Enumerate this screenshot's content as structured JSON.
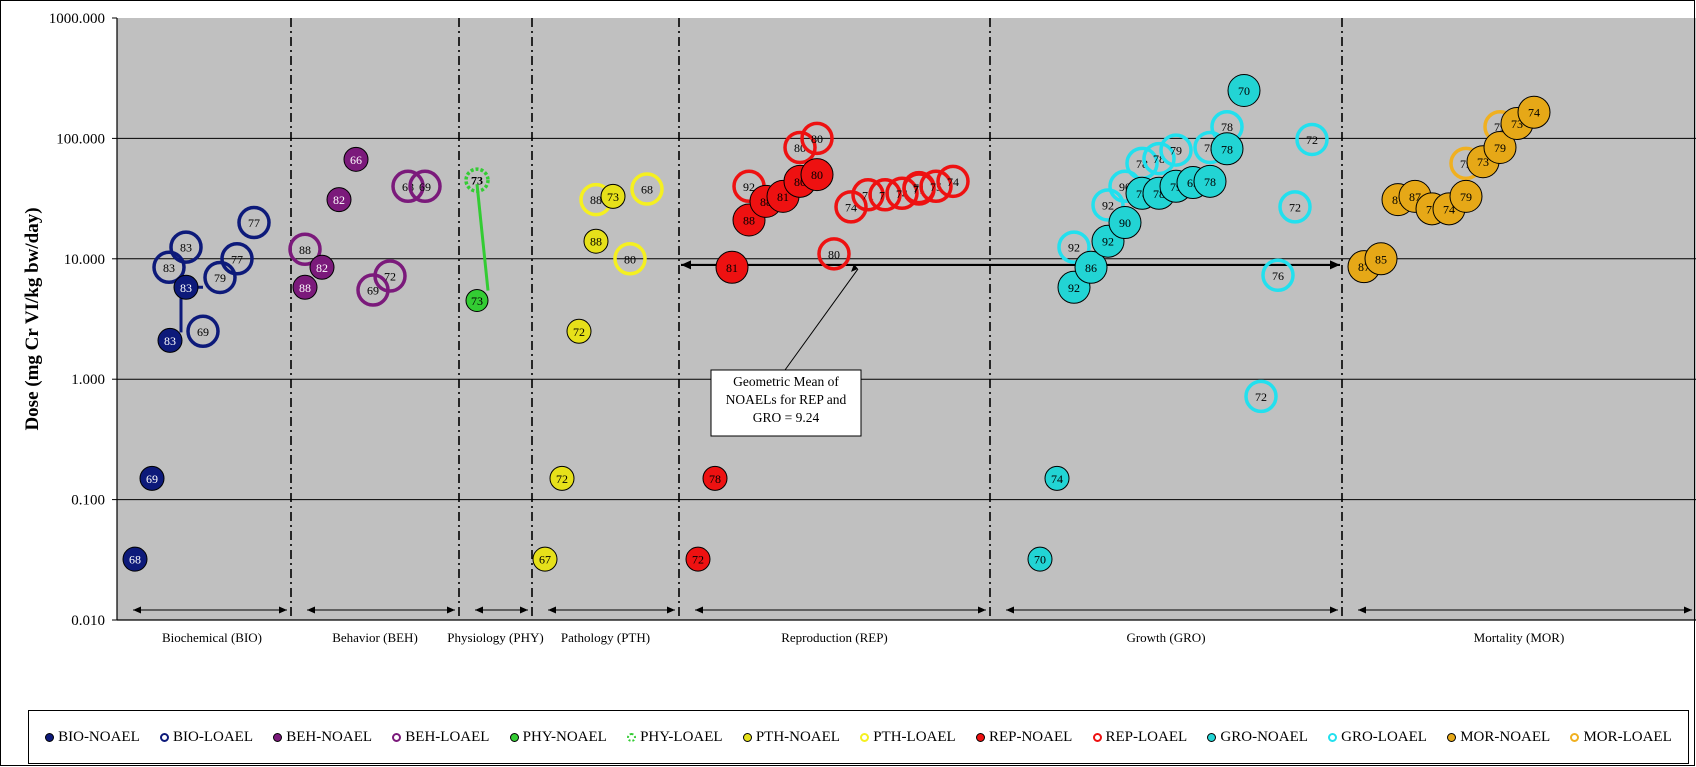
{
  "chart_data": {
    "type": "scatter",
    "yscale": "log",
    "ylim": [
      0.01,
      1000
    ],
    "ylabel": "Dose (mg Cr VI/kg bw/day)",
    "yticks": [
      "1000.000",
      "100.000",
      "10.000",
      "1.000",
      "0.100",
      "0.010"
    ],
    "grid": true,
    "legend_placement": "bottom",
    "categories": [
      {
        "code": "BIO",
        "label": "Biochemical (BIO)"
      },
      {
        "code": "BEH",
        "label": "Behavior (BEH)"
      },
      {
        "code": "PHY",
        "label": "Physiology (PHY)"
      },
      {
        "code": "PTH",
        "label": "Pathology (PTH)"
      },
      {
        "code": "REP",
        "label": "Reproduction (REP)"
      },
      {
        "code": "GRO",
        "label": "Growth (GRO)"
      },
      {
        "code": "MOR",
        "label": "Mortality (MOR)"
      }
    ],
    "series": [
      {
        "name": "BIO-NOAEL",
        "category": "BIO",
        "kind": "NOAEL",
        "color": "#0d1a7a",
        "text_color": "#ffffff",
        "points": [
          {
            "dose": 0.032,
            "label": "68"
          },
          {
            "dose": 0.15,
            "label": "69"
          },
          {
            "dose": 2.1,
            "label": "83"
          },
          {
            "dose": 5.8,
            "label": "83"
          }
        ]
      },
      {
        "name": "BIO-LOAEL",
        "category": "BIO",
        "kind": "LOAEL",
        "color": "#0d1a7a",
        "text_color": "#000000",
        "points": [
          {
            "dose": 8.5,
            "label": "83"
          },
          {
            "dose": 12.5,
            "label": "83"
          },
          {
            "dose": 2.5,
            "label": "69"
          },
          {
            "dose": 7.0,
            "label": "79"
          },
          {
            "dose": 10.0,
            "label": "77"
          },
          {
            "dose": 20.0,
            "label": "77"
          }
        ]
      },
      {
        "name": "BEH-NOAEL",
        "category": "BEH",
        "kind": "NOAEL",
        "color": "#7b1a7b",
        "text_color": "#ffffff",
        "points": [
          {
            "dose": 5.8,
            "label": "88"
          },
          {
            "dose": 8.5,
            "label": "82"
          },
          {
            "dose": 31,
            "label": "82"
          },
          {
            "dose": 67,
            "label": "66"
          }
        ]
      },
      {
        "name": "BEH-LOAEL",
        "category": "BEH",
        "kind": "LOAEL",
        "color": "#7b1a7b",
        "text_color": "#000000",
        "points": [
          {
            "dose": 12,
            "label": "88"
          },
          {
            "dose": 5.5,
            "label": "69"
          },
          {
            "dose": 7.2,
            "label": "72"
          },
          {
            "dose": 40,
            "label": "68"
          },
          {
            "dose": 40,
            "label": "69"
          }
        ]
      },
      {
        "name": "PHY-NOAEL",
        "category": "PHY",
        "kind": "NOAEL",
        "color": "#33cc33",
        "text_color": "#000000",
        "points": [
          {
            "dose": 4.5,
            "label": "73"
          }
        ]
      },
      {
        "name": "PHY-LOAEL",
        "category": "PHY",
        "kind": "LOAEL",
        "color": "#33cc33",
        "text_color": "#000000",
        "points": [
          {
            "dose": 45,
            "label": "73"
          }
        ]
      },
      {
        "name": "PTH-NOAEL",
        "category": "PTH",
        "kind": "NOAEL",
        "color": "#e6e01a",
        "text_color": "#000000",
        "points": [
          {
            "dose": 0.032,
            "label": "67"
          },
          {
            "dose": 0.15,
            "label": "72"
          },
          {
            "dose": 2.5,
            "label": "72"
          },
          {
            "dose": 14,
            "label": "88"
          },
          {
            "dose": 33,
            "label": "73"
          }
        ]
      },
      {
        "name": "PTH-LOAEL",
        "category": "PTH",
        "kind": "LOAEL",
        "color": "#f5f020",
        "text_color": "#000000",
        "points": [
          {
            "dose": 31,
            "label": "88"
          },
          {
            "dose": 10,
            "label": "80"
          },
          {
            "dose": 38,
            "label": "68"
          }
        ]
      },
      {
        "name": "REP-NOAEL",
        "category": "REP",
        "kind": "NOAEL",
        "color": "#ee1111",
        "text_color": "#000000",
        "points": [
          {
            "dose": 0.032,
            "label": "72"
          },
          {
            "dose": 0.15,
            "label": "78"
          },
          {
            "dose": 8.5,
            "label": "81"
          },
          {
            "dose": 21,
            "label": "88"
          },
          {
            "dose": 30,
            "label": "88"
          },
          {
            "dose": 33,
            "label": "81"
          },
          {
            "dose": 44,
            "label": "80"
          },
          {
            "dose": 50,
            "label": "80"
          }
        ]
      },
      {
        "name": "REP-LOAEL",
        "category": "REP",
        "kind": "LOAEL",
        "color": "#ee1111",
        "text_color": "#000000",
        "points": [
          {
            "dose": 40,
            "label": "92"
          },
          {
            "dose": 84,
            "label": "80"
          },
          {
            "dose": 100,
            "label": "80"
          },
          {
            "dose": 11,
            "label": "80"
          },
          {
            "dose": 27,
            "label": "74"
          },
          {
            "dose": 34,
            "label": "71"
          },
          {
            "dose": 34,
            "label": "71"
          },
          {
            "dose": 35,
            "label": "74"
          },
          {
            "dose": 38,
            "label": "71"
          },
          {
            "dose": 39,
            "label": "71"
          },
          {
            "dose": 40,
            "label": "75"
          },
          {
            "dose": 44,
            "label": "74"
          }
        ]
      },
      {
        "name": "GRO-NOAEL",
        "category": "GRO",
        "kind": "NOAEL",
        "color": "#22d4d4",
        "text_color": "#000000",
        "points": [
          {
            "dose": 0.032,
            "label": "70"
          },
          {
            "dose": 0.15,
            "label": "74"
          },
          {
            "dose": 5.8,
            "label": "92"
          },
          {
            "dose": 8.5,
            "label": "86"
          },
          {
            "dose": 14,
            "label": "92"
          },
          {
            "dose": 20,
            "label": "90"
          },
          {
            "dose": 35,
            "label": "78"
          },
          {
            "dose": 35,
            "label": "78"
          },
          {
            "dose": 40,
            "label": "79"
          },
          {
            "dose": 43,
            "label": "69"
          },
          {
            "dose": 44,
            "label": "78"
          },
          {
            "dose": 82,
            "label": "78"
          },
          {
            "dose": 250,
            "label": "70"
          }
        ]
      },
      {
        "name": "GRO-LOAEL",
        "category": "GRO",
        "kind": "LOAEL",
        "color": "#22e0ee",
        "text_color": "#000000",
        "points": [
          {
            "dose": 12.5,
            "label": "92"
          },
          {
            "dose": 28,
            "label": "92"
          },
          {
            "dose": 40,
            "label": "90"
          },
          {
            "dose": 62,
            "label": "78"
          },
          {
            "dose": 68,
            "label": "78"
          },
          {
            "dose": 80,
            "label": "79"
          },
          {
            "dose": 84,
            "label": "78"
          },
          {
            "dose": 125,
            "label": "78"
          },
          {
            "dose": 98,
            "label": "72"
          },
          {
            "dose": 0.72,
            "label": "72"
          },
          {
            "dose": 7.3,
            "label": "76"
          },
          {
            "dose": 27,
            "label": "72"
          }
        ]
      },
      {
        "name": "MOR-NOAEL",
        "category": "MOR",
        "kind": "NOAEL",
        "color": "#e6a817",
        "text_color": "#000000",
        "points": [
          {
            "dose": 8.6,
            "label": "87"
          },
          {
            "dose": 10,
            "label": "85"
          },
          {
            "dose": 31,
            "label": "87"
          },
          {
            "dose": 33,
            "label": "87"
          },
          {
            "dose": 26,
            "label": "77"
          },
          {
            "dose": 26,
            "label": "74"
          },
          {
            "dose": 33,
            "label": "79"
          },
          {
            "dose": 64,
            "label": "73"
          },
          {
            "dose": 84,
            "label": "79"
          },
          {
            "dose": 133,
            "label": "73"
          },
          {
            "dose": 165,
            "label": "74"
          }
        ]
      },
      {
        "name": "MOR-LOAEL",
        "category": "MOR",
        "kind": "LOAEL",
        "color": "#f0b020",
        "text_color": "#000000",
        "points": [
          {
            "dose": 62,
            "label": "79"
          },
          {
            "dose": 125,
            "label": "79"
          }
        ]
      }
    ],
    "geometric_mean": {
      "value": 9.24,
      "annotation_lines": [
        "Geometric Mean of",
        "NOAELs for REP and",
        "GRO = 9.24"
      ],
      "spans_categories": [
        "REP",
        "GRO"
      ]
    }
  }
}
